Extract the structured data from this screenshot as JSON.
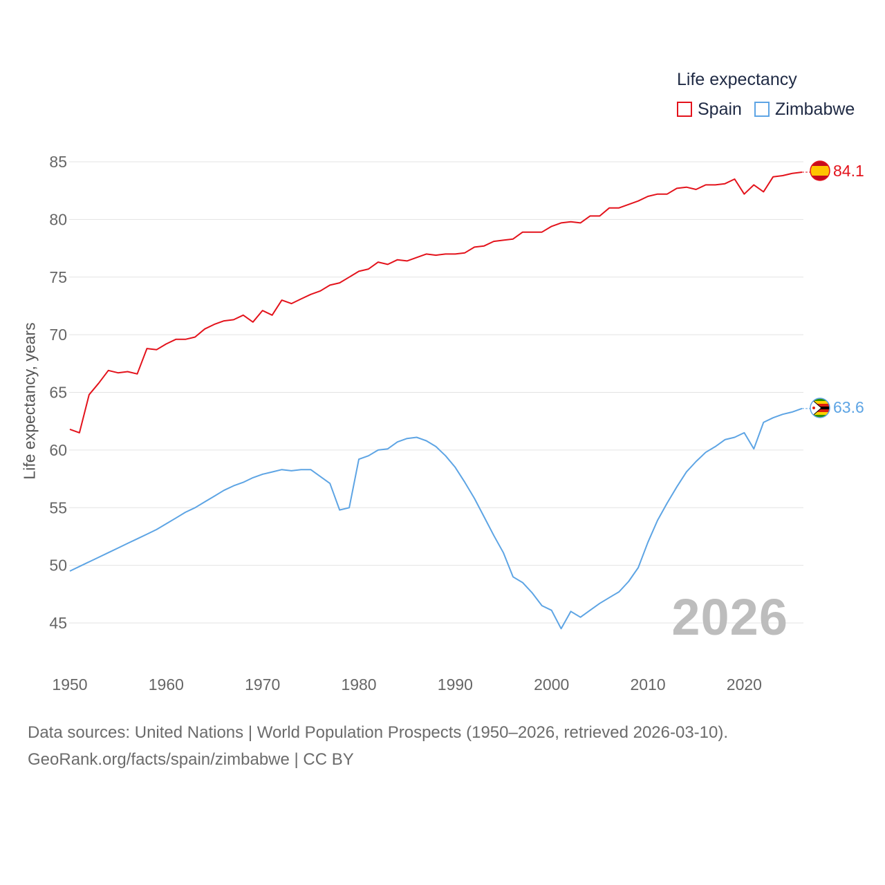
{
  "chart_data": {
    "type": "line",
    "legend_title": "Life expectancy",
    "ylabel": "Life expectancy, years",
    "xlabel": "",
    "xlim": [
      1950,
      2026
    ],
    "ylim": [
      42.5,
      87
    ],
    "x_ticks": [
      1950,
      1960,
      1970,
      1980,
      1990,
      2000,
      2010,
      2020
    ],
    "y_ticks": [
      45,
      50,
      55,
      60,
      65,
      70,
      75,
      80,
      85
    ],
    "year_stamp": "2026",
    "x": [
      1950,
      1951,
      1952,
      1953,
      1954,
      1955,
      1956,
      1957,
      1958,
      1959,
      1960,
      1961,
      1962,
      1963,
      1964,
      1965,
      1966,
      1967,
      1968,
      1969,
      1970,
      1971,
      1972,
      1973,
      1974,
      1975,
      1976,
      1977,
      1978,
      1979,
      1980,
      1981,
      1982,
      1983,
      1984,
      1985,
      1986,
      1987,
      1988,
      1989,
      1990,
      1991,
      1992,
      1993,
      1994,
      1995,
      1996,
      1997,
      1998,
      1999,
      2000,
      2001,
      2002,
      2003,
      2004,
      2005,
      2006,
      2007,
      2008,
      2009,
      2010,
      2011,
      2012,
      2013,
      2014,
      2015,
      2016,
      2017,
      2018,
      2019,
      2020,
      2021,
      2022,
      2023,
      2024,
      2025,
      2026
    ],
    "series": [
      {
        "name": "Spain",
        "color": "#e3121b",
        "end_label": "84.1",
        "flag": "spain",
        "values": [
          61.8,
          61.5,
          64.8,
          65.8,
          66.9,
          66.7,
          66.8,
          66.6,
          68.8,
          68.7,
          69.2,
          69.6,
          69.6,
          69.8,
          70.5,
          70.9,
          71.2,
          71.3,
          71.7,
          71.1,
          72.1,
          71.7,
          73.0,
          72.7,
          73.1,
          73.5,
          73.8,
          74.3,
          74.5,
          75.0,
          75.5,
          75.7,
          76.3,
          76.1,
          76.5,
          76.4,
          76.7,
          77.0,
          76.9,
          77.0,
          77.0,
          77.1,
          77.6,
          77.7,
          78.1,
          78.2,
          78.3,
          78.9,
          78.9,
          78.9,
          79.4,
          79.7,
          79.8,
          79.7,
          80.3,
          80.3,
          81.0,
          81.0,
          81.3,
          81.6,
          82.0,
          82.2,
          82.2,
          82.7,
          82.8,
          82.6,
          83.0,
          83.0,
          83.1,
          83.5,
          82.2,
          83.0,
          82.4,
          83.7,
          83.8,
          84.0,
          84.1
        ]
      },
      {
        "name": "Zimbabwe",
        "color": "#5da4e4",
        "end_label": "63.6",
        "flag": "zimbabwe",
        "values": [
          49.5,
          49.9,
          50.3,
          50.7,
          51.1,
          51.5,
          51.9,
          52.3,
          52.7,
          53.1,
          53.6,
          54.1,
          54.6,
          55.0,
          55.5,
          56.0,
          56.5,
          56.9,
          57.2,
          57.6,
          57.9,
          58.1,
          58.3,
          58.2,
          58.3,
          58.3,
          57.7,
          57.1,
          54.8,
          55.0,
          59.2,
          59.5,
          60.0,
          60.1,
          60.7,
          61.0,
          61.1,
          60.8,
          60.3,
          59.5,
          58.5,
          57.2,
          55.8,
          54.2,
          52.6,
          51.1,
          49.0,
          48.5,
          47.6,
          46.5,
          46.1,
          44.5,
          46.0,
          45.5,
          46.1,
          46.7,
          47.2,
          47.7,
          48.6,
          49.8,
          52.0,
          53.9,
          55.4,
          56.8,
          58.1,
          59.0,
          59.8,
          60.3,
          60.9,
          61.1,
          61.5,
          60.1,
          62.4,
          62.8,
          63.1,
          63.3,
          63.6
        ]
      }
    ]
  },
  "source": {
    "line1": "Data sources: United Nations | World Population Prospects (1950–2026, retrieved 2026-03-10).",
    "line2": "GeoRank.org/facts/spain/zimbabwe | CC BY"
  }
}
